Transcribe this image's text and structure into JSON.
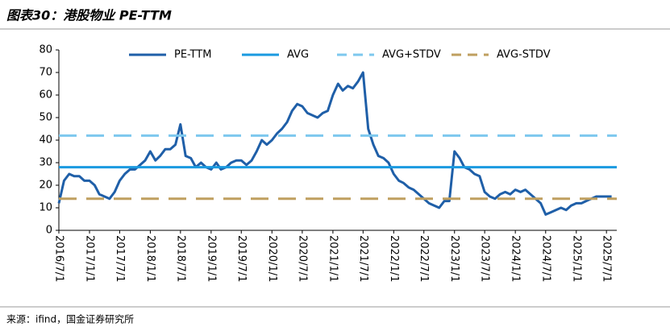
{
  "chart_data": {
    "type": "line",
    "title": "图表30：港股物业 PE-TTM",
    "source": "来源：ifind，国金证券研究所",
    "x": [
      "2016/7/1",
      "2016/8/1",
      "2016/9/1",
      "2016/10/1",
      "2016/11/1",
      "2016/12/1",
      "2017/1/1",
      "2017/2/1",
      "2017/3/1",
      "2017/4/1",
      "2017/5/1",
      "2017/6/1",
      "2017/7/1",
      "2017/8/1",
      "2017/9/1",
      "2017/10/1",
      "2017/11/1",
      "2017/12/1",
      "2018/1/1",
      "2018/2/1",
      "2018/3/1",
      "2018/4/1",
      "2018/5/1",
      "2018/6/1",
      "2018/7/1",
      "2018/8/1",
      "2018/9/1",
      "2018/10/1",
      "2018/11/1",
      "2018/12/1",
      "2019/1/1",
      "2019/2/1",
      "2019/3/1",
      "2019/4/1",
      "2019/5/1",
      "2019/6/1",
      "2019/7/1",
      "2019/8/1",
      "2019/9/1",
      "2019/10/1",
      "2019/11/1",
      "2019/12/1",
      "2020/1/1",
      "2020/2/1",
      "2020/3/1",
      "2020/4/1",
      "2020/5/1",
      "2020/6/1",
      "2020/7/1",
      "2020/8/1",
      "2020/9/1",
      "2020/10/1",
      "2020/11/1",
      "2020/12/1",
      "2021/1/1",
      "2021/2/1",
      "2021/3/1",
      "2021/4/1",
      "2021/5/1",
      "2021/6/1",
      "2021/7/1",
      "2021/8/1",
      "2021/9/1",
      "2021/10/1",
      "2021/11/1",
      "2021/12/1",
      "2022/1/1",
      "2022/2/1",
      "2022/3/1",
      "2022/4/1",
      "2022/5/1",
      "2022/6/1",
      "2022/7/1",
      "2022/8/1",
      "2022/9/1",
      "2022/10/1",
      "2022/11/1",
      "2022/12/1",
      "2023/1/1",
      "2023/2/1",
      "2023/3/1",
      "2023/4/1",
      "2023/5/1",
      "2023/6/1",
      "2023/7/1",
      "2023/8/1",
      "2023/9/1",
      "2023/10/1",
      "2023/11/1",
      "2023/12/1",
      "2024/1/1",
      "2024/2/1",
      "2024/3/1",
      "2024/4/1",
      "2024/5/1",
      "2024/6/1",
      "2024/7/1",
      "2024/8/1",
      "2024/9/1",
      "2024/10/1",
      "2024/11/1",
      "2024/12/1",
      "2025/1/1",
      "2025/2/1",
      "2025/3/1",
      "2025/4/1",
      "2025/5/1",
      "2025/6/1",
      "2025/7/1",
      "2025/8/1"
    ],
    "series": [
      {
        "name": "PE-TTM",
        "color": "#1f5fa8",
        "style": "solid",
        "values": [
          12,
          22,
          25,
          24,
          24,
          22,
          22,
          20,
          16,
          15,
          14,
          17,
          22,
          25,
          27,
          27,
          29,
          31,
          35,
          31,
          33,
          36,
          36,
          38,
          47,
          33,
          32,
          28,
          30,
          28,
          27,
          30,
          27,
          28,
          30,
          31,
          31,
          29,
          31,
          35,
          40,
          38,
          40,
          43,
          45,
          48,
          53,
          56,
          55,
          52,
          51,
          50,
          52,
          53,
          60,
          65,
          62,
          64,
          63,
          66,
          70,
          45,
          38,
          33,
          32,
          30,
          25,
          22,
          21,
          19,
          18,
          16,
          14,
          12,
          11,
          10,
          13,
          13,
          35,
          32,
          28,
          27,
          25,
          24,
          17,
          15,
          14,
          16,
          17,
          16,
          18,
          17,
          18,
          16,
          14,
          12,
          7,
          8,
          9,
          10,
          9,
          11,
          12,
          12,
          13,
          14,
          15,
          15,
          15,
          15
        ]
      },
      {
        "name": "AVG",
        "color": "#1a9ae0",
        "style": "solid",
        "value": 28
      },
      {
        "name": "AVG+STDV",
        "color": "#7dc8ee",
        "style": "dashed",
        "value": 42
      },
      {
        "name": "AVG-STDV",
        "color": "#bf9f5f",
        "style": "dashed",
        "value": 14
      }
    ],
    "ylim": [
      0,
      80
    ],
    "yticks": [
      0,
      10,
      20,
      30,
      40,
      50,
      60,
      70,
      80
    ],
    "xlim": [
      "2016/7/1",
      "2025/9/1"
    ],
    "xticks": [
      "2016/7/1",
      "2017/1/1",
      "2017/7/1",
      "2018/1/1",
      "2018/7/1",
      "2019/1/1",
      "2019/7/1",
      "2020/1/1",
      "2020/7/1",
      "2021/1/1",
      "2021/7/1",
      "2022/1/1",
      "2022/7/1",
      "2023/1/1",
      "2023/7/1",
      "2024/1/1",
      "2024/7/1",
      "2025/1/1",
      "2025/7/1"
    ]
  }
}
